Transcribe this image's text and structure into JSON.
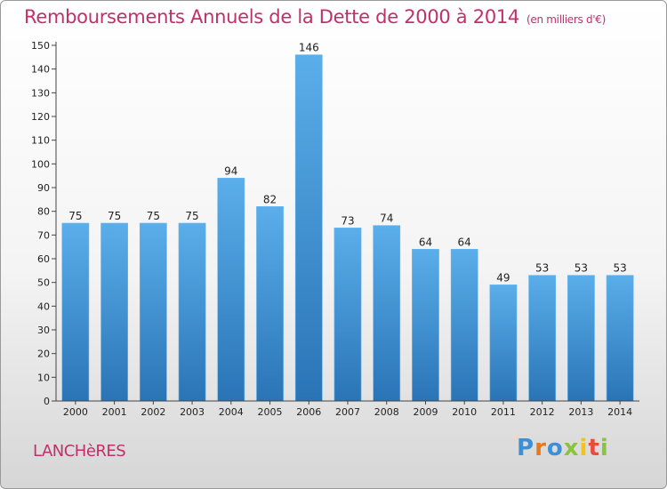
{
  "title": "Remboursements Annuels de la Dette de 2000 à 2014",
  "subtitle": "(en milliers d'€)",
  "town": "LANCHèRES",
  "logo": {
    "letters": [
      "P",
      "r",
      "o",
      "x",
      "i",
      "t",
      "i"
    ],
    "colors": [
      "#3d8fd6",
      "#e8781a",
      "#3d8fd6",
      "#8ac43f",
      "#f0c419",
      "#e84c3d",
      "#8ac43f"
    ]
  },
  "colors": {
    "bar_top": "#5aaeea",
    "bar_bottom": "#2a74b6",
    "title": "#c0306a"
  },
  "chart_data": {
    "type": "bar",
    "categories": [
      "2000",
      "2001",
      "2002",
      "2003",
      "2004",
      "2005",
      "2006",
      "2007",
      "2008",
      "2009",
      "2010",
      "2011",
      "2012",
      "2013",
      "2014"
    ],
    "values": [
      75,
      75,
      75,
      75,
      94,
      82,
      146,
      73,
      74,
      64,
      64,
      49,
      53,
      53,
      53
    ],
    "ylim": [
      0,
      150
    ],
    "yticks": [
      0,
      10,
      20,
      30,
      40,
      50,
      60,
      70,
      80,
      90,
      100,
      110,
      120,
      130,
      140,
      150
    ],
    "grid": false,
    "xlabel": "",
    "ylabel": ""
  }
}
